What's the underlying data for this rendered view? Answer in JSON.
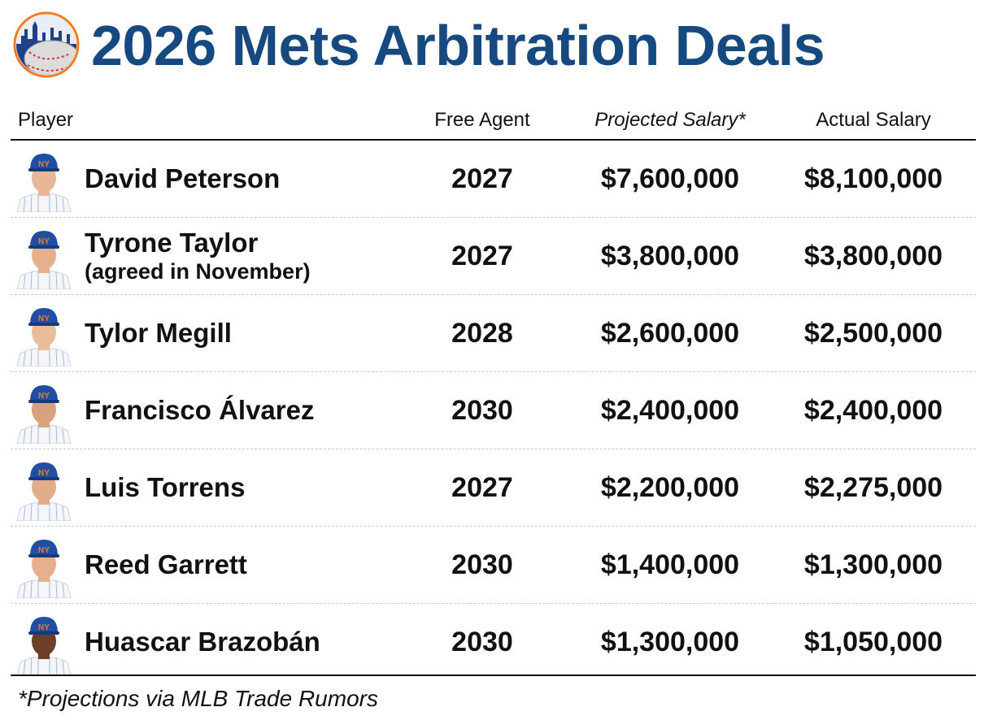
{
  "header": {
    "title": "2026 Mets Arbitration Deals",
    "logo_icon": "mets-skyline-baseball-logo",
    "title_color": "#16497f"
  },
  "columns": {
    "player": "Player",
    "free_agent": "Free Agent",
    "projected": "Projected Salary*",
    "actual": "Actual Salary"
  },
  "rows": [
    {
      "name": "David Peterson",
      "note": "",
      "free_agent": "2027",
      "projected": "$7,600,000",
      "actual": "$8,100,000",
      "avatar_icon": "player-headshot-icon"
    },
    {
      "name": "Tyrone Taylor",
      "note": "(agreed in November)",
      "free_agent": "2027",
      "projected": "$3,800,000",
      "actual": "$3,800,000",
      "avatar_icon": "player-headshot-icon"
    },
    {
      "name": "Tylor Megill",
      "note": "",
      "free_agent": "2028",
      "projected": "$2,600,000",
      "actual": "$2,500,000",
      "avatar_icon": "player-headshot-icon"
    },
    {
      "name": "Francisco Álvarez",
      "note": "",
      "free_agent": "2030",
      "projected": "$2,400,000",
      "actual": "$2,400,000",
      "avatar_icon": "player-headshot-icon"
    },
    {
      "name": "Luis Torrens",
      "note": "",
      "free_agent": "2027",
      "projected": "$2,200,000",
      "actual": "$2,275,000",
      "avatar_icon": "player-headshot-icon"
    },
    {
      "name": "Reed Garrett",
      "note": "",
      "free_agent": "2030",
      "projected": "$1,400,000",
      "actual": "$1,300,000",
      "avatar_icon": "player-headshot-icon"
    },
    {
      "name": "Huascar Brazobán",
      "note": "",
      "free_agent": "2030",
      "projected": "$1,300,000",
      "actual": "$1,050,000",
      "avatar_icon": "player-headshot-icon"
    }
  ],
  "footnote": "*Projections via MLB Trade Rumors",
  "colors": {
    "cap_blue": "#1f4fa3",
    "cap_orange": "#f47a20",
    "rule": "#111111"
  }
}
